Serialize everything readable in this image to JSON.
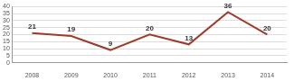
{
  "chart_data": {
    "type": "line",
    "categories": [
      "2008",
      "2009",
      "2010",
      "2011",
      "2012",
      "2013",
      "2014"
    ],
    "values": [
      21,
      19,
      9,
      20,
      13,
      36,
      20
    ],
    "color": "#9c3d2b",
    "ylim": [
      0,
      40
    ],
    "yticks": [
      0,
      5,
      10,
      15,
      20,
      25,
      30,
      35,
      40
    ],
    "grid": true,
    "data_labels": true
  }
}
